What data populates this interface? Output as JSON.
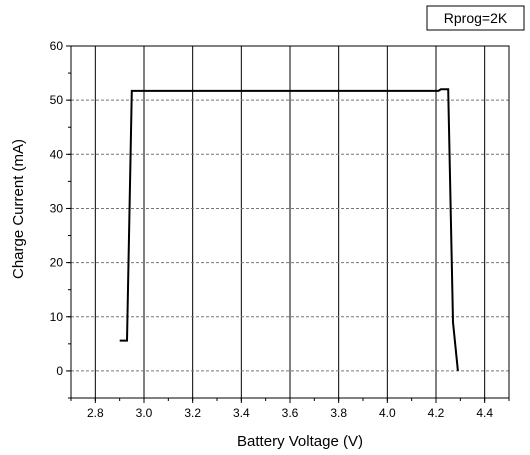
{
  "chart_data": {
    "type": "line",
    "title": "",
    "xlabel": "Battery Voltage (V)",
    "ylabel": "Charge Current (mA)",
    "xlim": [
      2.7,
      4.5
    ],
    "ylim": [
      -5,
      60
    ],
    "xticks": [
      "2.8",
      "3.0",
      "3.2",
      "3.4",
      "3.6",
      "3.8",
      "4.0",
      "4.2",
      "4.4"
    ],
    "yticks": [
      "0",
      "10",
      "20",
      "30",
      "40",
      "50",
      "60"
    ],
    "grid": true,
    "legend_placement": "top-right",
    "series": [
      {
        "name": "Rprog=2K",
        "color": "#000000",
        "x": [
          2.9,
          2.93,
          2.95,
          4.21,
          4.22,
          4.25,
          4.27,
          4.29
        ],
        "y": [
          5.6,
          5.6,
          51.7,
          51.7,
          52.0,
          52.0,
          9.0,
          0
        ]
      }
    ]
  }
}
